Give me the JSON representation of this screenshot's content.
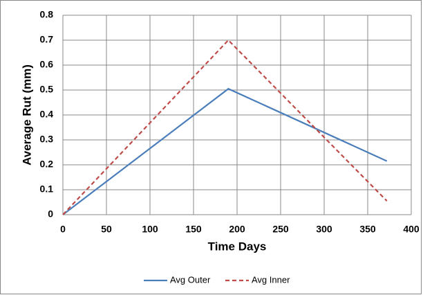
{
  "chart_data": {
    "type": "line",
    "x_label": "Time Days",
    "y_label": "Average Rut (mm)",
    "series": [
      {
        "name": "Avg Outer",
        "color": "#4a7ebb",
        "line_style": "solid",
        "x": [
          0,
          190,
          372
        ],
        "values": [
          0,
          0.505,
          0.215
        ]
      },
      {
        "name": "Avg Inner",
        "color": "#be4b48",
        "line_style": "dashed",
        "x": [
          0,
          190,
          372
        ],
        "values": [
          0,
          0.7,
          0.055
        ]
      }
    ],
    "xlim": [
      0,
      400
    ],
    "xticks": [
      0,
      50,
      100,
      150,
      200,
      250,
      300,
      350,
      400
    ],
    "ylim": [
      0,
      0.8
    ],
    "yticks": [
      0,
      0.1,
      0.2,
      0.3,
      0.4,
      0.5,
      0.6,
      0.7,
      0.8
    ],
    "grid": true,
    "legend": "bottom"
  }
}
